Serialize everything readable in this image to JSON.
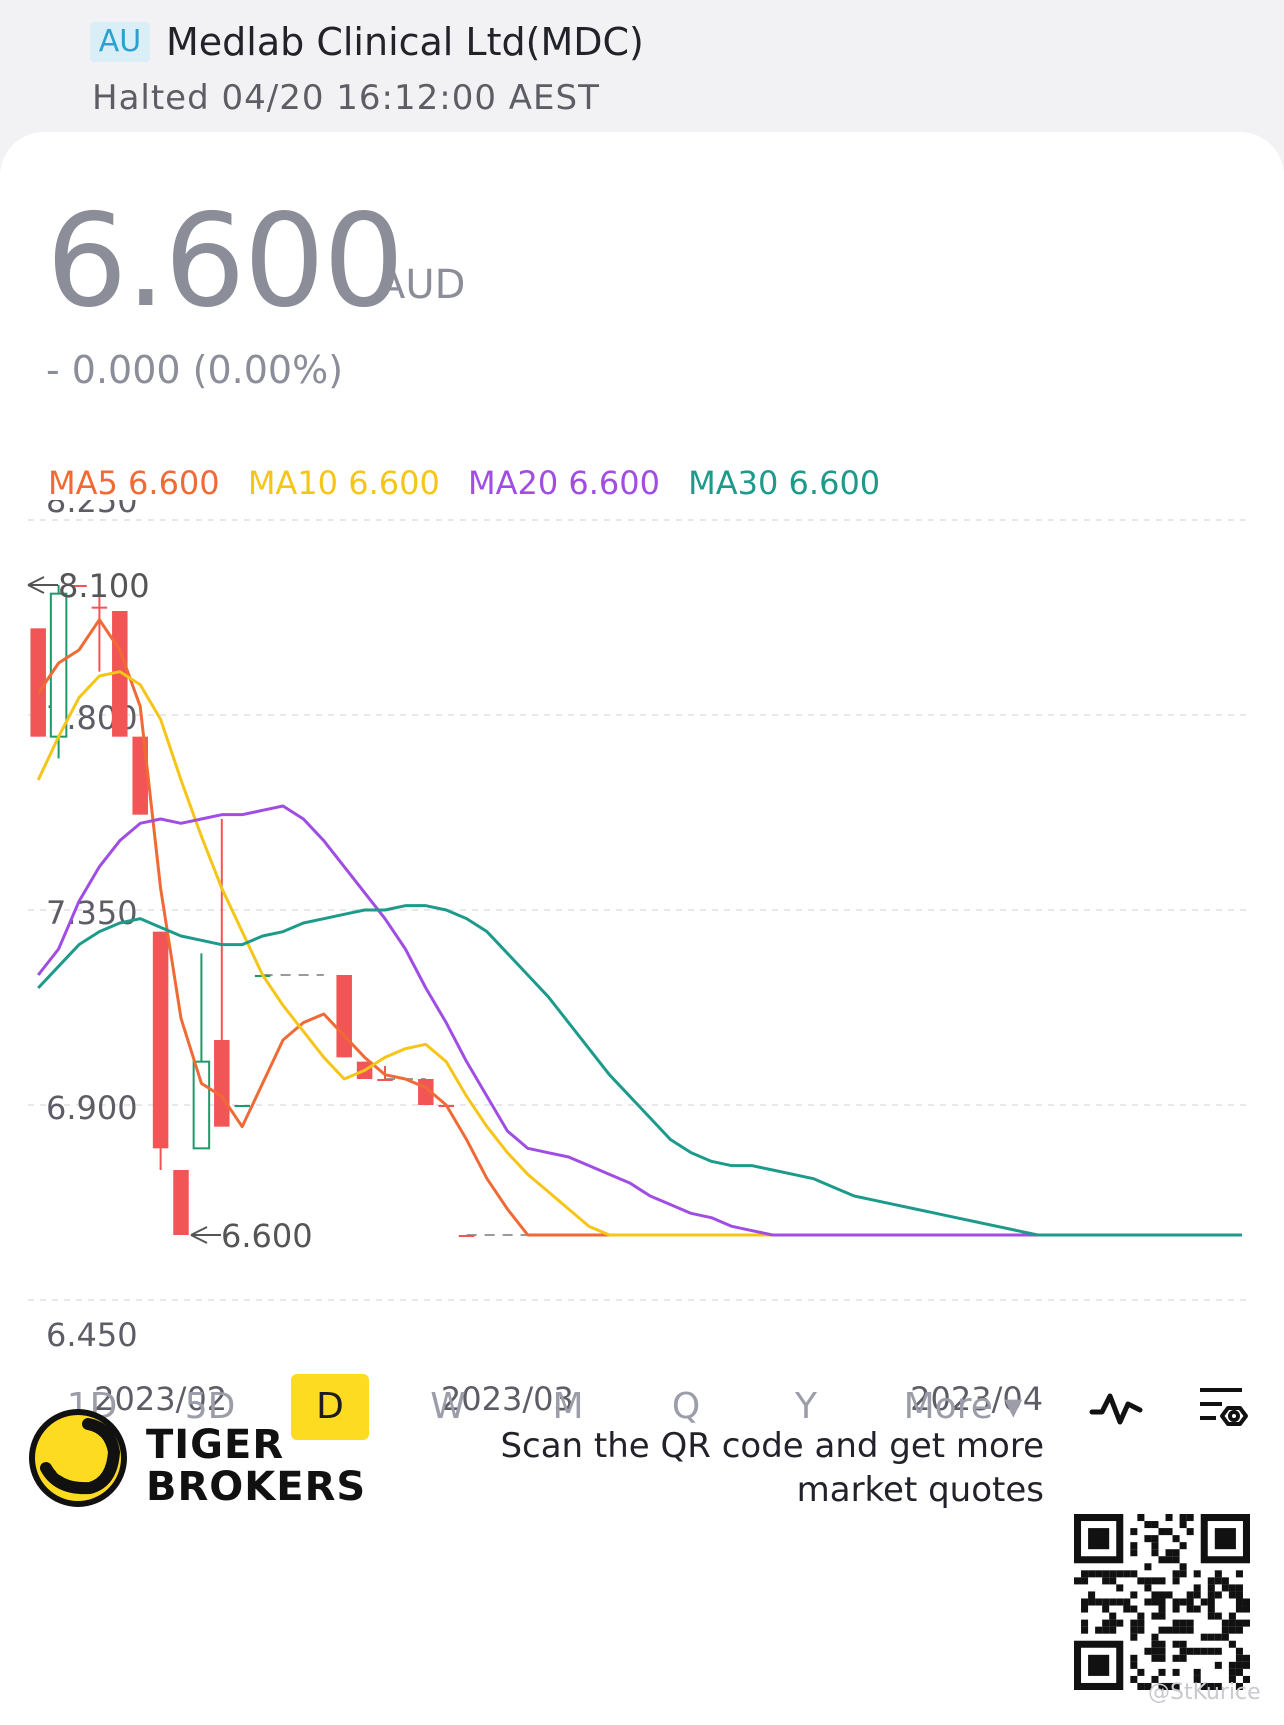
{
  "header": {
    "market_badge": "AU",
    "stock_name": "Medlab Clinical Ltd(MDC)",
    "status": "Halted 04/20 16:12:00 AEST"
  },
  "quote": {
    "price": "6.600",
    "currency": "AUD",
    "change": "- 0.000 (0.00%)"
  },
  "ma_legend": [
    {
      "label": "MA5 6.600",
      "color": "#f06a35"
    },
    {
      "label": "MA10 6.600",
      "color": "#f5c518"
    },
    {
      "label": "MA20 6.600",
      "color": "#a04de3"
    },
    {
      "label": "MA30 6.600",
      "color": "#1e9a8a"
    }
  ],
  "chart_data": {
    "type": "candlestick",
    "y_ticks": [
      "8.250",
      "7.800",
      "7.350",
      "6.900",
      "6.450"
    ],
    "ylim": [
      6.45,
      8.25
    ],
    "x_labels": [
      {
        "label": "2023/02",
        "day": 6
      },
      {
        "label": "2023/03",
        "day": 23
      },
      {
        "label": "2023/04",
        "day": 46
      }
    ],
    "high_label": "8.100",
    "low_label": "6.600",
    "n_days": 60,
    "candles": [
      {
        "day": 0,
        "open": 8.0,
        "close": 7.75,
        "high": 8.0,
        "low": 7.75
      },
      {
        "day": 1,
        "open": 7.75,
        "close": 8.08,
        "high": 8.1,
        "low": 7.7
      },
      {
        "day": 2,
        "open": 8.1,
        "close": 8.1,
        "high": 8.1,
        "low": 8.1
      },
      {
        "day": 3,
        "open": 8.05,
        "close": 8.05,
        "high": 8.1,
        "low": 7.9
      },
      {
        "day": 4,
        "open": 8.04,
        "close": 7.75,
        "high": 8.04,
        "low": 7.75
      },
      {
        "day": 5,
        "open": 7.75,
        "close": 7.57,
        "high": 7.75,
        "low": 7.57
      },
      {
        "day": 6,
        "open": 7.3,
        "close": 6.8,
        "high": 7.3,
        "low": 6.75
      },
      {
        "day": 7,
        "open": 6.75,
        "close": 6.6,
        "high": 6.75,
        "low": 6.6
      },
      {
        "day": 8,
        "open": 6.8,
        "close": 7.0,
        "high": 7.25,
        "low": 6.8
      },
      {
        "day": 9,
        "open": 7.05,
        "close": 6.85,
        "high": 7.56,
        "low": 6.85
      },
      {
        "day": 10,
        "open": 6.9,
        "close": 6.9,
        "high": 6.9,
        "low": 6.9
      },
      {
        "day": 11,
        "open": 7.2,
        "close": 7.2,
        "high": 7.2,
        "low": 7.2
      },
      {
        "day": 15,
        "open": 7.2,
        "close": 7.01,
        "high": 7.2,
        "low": 7.01
      },
      {
        "day": 16,
        "open": 7.0,
        "close": 6.96,
        "high": 7.0,
        "low": 6.96
      },
      {
        "day": 17,
        "open": 6.96,
        "close": 6.96,
        "high": 6.99,
        "low": 6.96
      },
      {
        "day": 19,
        "open": 6.96,
        "close": 6.9,
        "high": 6.96,
        "low": 6.9
      },
      {
        "day": 20,
        "open": 6.9,
        "close": 6.9,
        "high": 6.9,
        "low": 6.9
      },
      {
        "day": 21,
        "open": 6.6,
        "close": 6.6,
        "high": 6.6,
        "low": 6.6
      }
    ],
    "dashes": [
      {
        "from": 11,
        "to": 14,
        "value": 7.2
      },
      {
        "from": 17,
        "to": 19,
        "value": 6.96
      },
      {
        "from": 21,
        "to": 24,
        "value": 6.6
      }
    ],
    "series": [
      {
        "name": "MA5",
        "color": "#f06a35",
        "points": [
          [
            0,
            7.85
          ],
          [
            1,
            7.92
          ],
          [
            2,
            7.95
          ],
          [
            3,
            8.02
          ],
          [
            4,
            7.95
          ],
          [
            5,
            7.82
          ],
          [
            6,
            7.4
          ],
          [
            7,
            7.1
          ],
          [
            8,
            6.95
          ],
          [
            9,
            6.92
          ],
          [
            10,
            6.85
          ],
          [
            11,
            6.95
          ],
          [
            12,
            7.05
          ],
          [
            13,
            7.09
          ],
          [
            14,
            7.11
          ],
          [
            15,
            7.06
          ],
          [
            16,
            7.01
          ],
          [
            17,
            6.97
          ],
          [
            18,
            6.96
          ],
          [
            19,
            6.94
          ],
          [
            20,
            6.9
          ],
          [
            21,
            6.82
          ],
          [
            22,
            6.73
          ],
          [
            23,
            6.66
          ],
          [
            24,
            6.6
          ],
          [
            59,
            6.6
          ]
        ]
      },
      {
        "name": "MA10",
        "color": "#f5c518",
        "points": [
          [
            0,
            7.65
          ],
          [
            1,
            7.75
          ],
          [
            2,
            7.84
          ],
          [
            3,
            7.89
          ],
          [
            4,
            7.9
          ],
          [
            5,
            7.87
          ],
          [
            6,
            7.79
          ],
          [
            7,
            7.65
          ],
          [
            8,
            7.52
          ],
          [
            9,
            7.4
          ],
          [
            10,
            7.3
          ],
          [
            11,
            7.2
          ],
          [
            12,
            7.13
          ],
          [
            13,
            7.07
          ],
          [
            14,
            7.01
          ],
          [
            15,
            6.96
          ],
          [
            16,
            6.98
          ],
          [
            17,
            7.01
          ],
          [
            18,
            7.03
          ],
          [
            19,
            7.04
          ],
          [
            20,
            7.0
          ],
          [
            21,
            6.92
          ],
          [
            22,
            6.85
          ],
          [
            23,
            6.79
          ],
          [
            24,
            6.74
          ],
          [
            25,
            6.7
          ],
          [
            26,
            6.66
          ],
          [
            27,
            6.62
          ],
          [
            28,
            6.6
          ],
          [
            59,
            6.6
          ]
        ]
      },
      {
        "name": "MA20",
        "color": "#a04de3",
        "points": [
          [
            0,
            7.2
          ],
          [
            1,
            7.26
          ],
          [
            2,
            7.37
          ],
          [
            3,
            7.45
          ],
          [
            4,
            7.51
          ],
          [
            5,
            7.55
          ],
          [
            6,
            7.56
          ],
          [
            7,
            7.55
          ],
          [
            8,
            7.56
          ],
          [
            9,
            7.57
          ],
          [
            10,
            7.57
          ],
          [
            11,
            7.58
          ],
          [
            12,
            7.59
          ],
          [
            13,
            7.56
          ],
          [
            14,
            7.51
          ],
          [
            15,
            7.45
          ],
          [
            16,
            7.39
          ],
          [
            17,
            7.33
          ],
          [
            18,
            7.26
          ],
          [
            19,
            7.17
          ],
          [
            20,
            7.09
          ],
          [
            21,
            7.0
          ],
          [
            22,
            6.92
          ],
          [
            23,
            6.84
          ],
          [
            24,
            6.8
          ],
          [
            25,
            6.79
          ],
          [
            26,
            6.78
          ],
          [
            27,
            6.76
          ],
          [
            28,
            6.74
          ],
          [
            29,
            6.72
          ],
          [
            30,
            6.69
          ],
          [
            31,
            6.67
          ],
          [
            32,
            6.65
          ],
          [
            33,
            6.64
          ],
          [
            34,
            6.62
          ],
          [
            35,
            6.61
          ],
          [
            36,
            6.6
          ],
          [
            59,
            6.6
          ]
        ]
      },
      {
        "name": "MA30",
        "color": "#1e9a8a",
        "points": [
          [
            0,
            7.17
          ],
          [
            1,
            7.22
          ],
          [
            2,
            7.27
          ],
          [
            3,
            7.3
          ],
          [
            4,
            7.32
          ],
          [
            5,
            7.33
          ],
          [
            6,
            7.31
          ],
          [
            7,
            7.29
          ],
          [
            8,
            7.28
          ],
          [
            9,
            7.27
          ],
          [
            10,
            7.27
          ],
          [
            11,
            7.29
          ],
          [
            12,
            7.3
          ],
          [
            13,
            7.32
          ],
          [
            14,
            7.33
          ],
          [
            15,
            7.34
          ],
          [
            16,
            7.35
          ],
          [
            17,
            7.35
          ],
          [
            18,
            7.36
          ],
          [
            19,
            7.36
          ],
          [
            20,
            7.35
          ],
          [
            21,
            7.33
          ],
          [
            22,
            7.3
          ],
          [
            23,
            7.25
          ],
          [
            24,
            7.2
          ],
          [
            25,
            7.15
          ],
          [
            26,
            7.09
          ],
          [
            27,
            7.03
          ],
          [
            28,
            6.97
          ],
          [
            29,
            6.92
          ],
          [
            30,
            6.87
          ],
          [
            31,
            6.82
          ],
          [
            32,
            6.79
          ],
          [
            33,
            6.77
          ],
          [
            34,
            6.76
          ],
          [
            35,
            6.76
          ],
          [
            36,
            6.75
          ],
          [
            37,
            6.74
          ],
          [
            38,
            6.73
          ],
          [
            39,
            6.71
          ],
          [
            40,
            6.69
          ],
          [
            41,
            6.68
          ],
          [
            42,
            6.67
          ],
          [
            43,
            6.66
          ],
          [
            44,
            6.65
          ],
          [
            45,
            6.64
          ],
          [
            46,
            6.63
          ],
          [
            47,
            6.62
          ],
          [
            48,
            6.61
          ],
          [
            49,
            6.6
          ],
          [
            59,
            6.6
          ]
        ]
      }
    ],
    "colors": {
      "up": "#1e9a6a",
      "down": "#f25555",
      "flat": "#9a9a9a",
      "grid": "#e8e8ec",
      "axis_text": "#5d5d66"
    }
  },
  "periods": [
    "1D",
    "5D",
    "D",
    "W",
    "M",
    "Q",
    "Y"
  ],
  "active_period": "D",
  "more_label": "More ▾",
  "icons": {
    "indicator": "pulse-icon",
    "settings": "chart-settings-icon"
  },
  "footer": {
    "brand_line1": "TIGER",
    "brand_line2": "BROKERS",
    "scan_text": "Scan the QR code and get more market quotes",
    "watermark": "@StKurice",
    "logo_color": "#fddb20"
  }
}
